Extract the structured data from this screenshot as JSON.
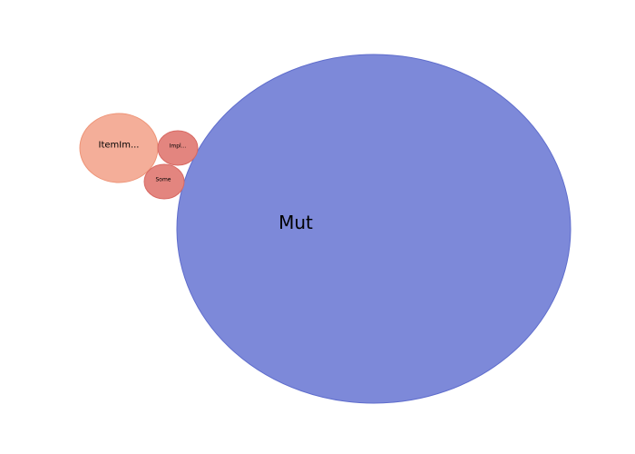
{
  "chart_data": {
    "type": "bubble",
    "title": "",
    "grid": false,
    "legend": "none",
    "bubbles": [
      {
        "label": "Mut",
        "value": 100,
        "color": "#7d89d9",
        "stroke": "#5f6dcc"
      },
      {
        "label": "ItemIm...",
        "value": 4.1,
        "color": "#f4ae99",
        "stroke": "#ee9477"
      },
      {
        "label": "Impl...",
        "value": 1.3,
        "color": "#e3857f",
        "stroke": "#d86a64"
      },
      {
        "label": "Some",
        "value": 1.25,
        "color": "#e3857f",
        "stroke": "#d86a64"
      }
    ]
  }
}
